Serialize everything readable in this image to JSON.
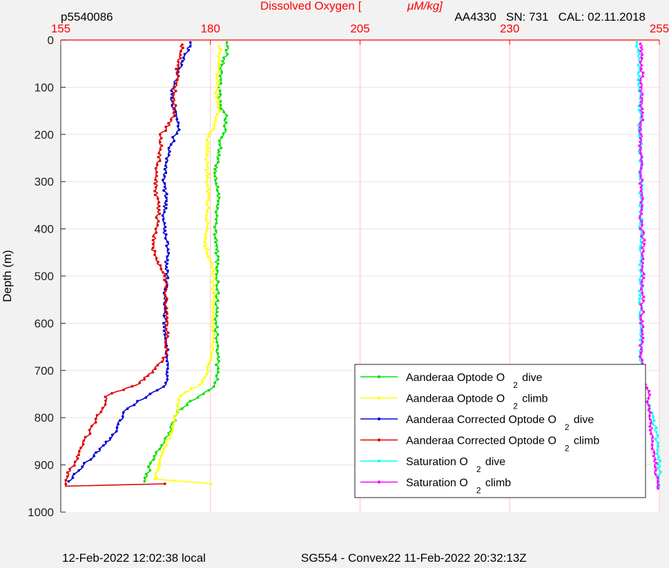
{
  "header": {
    "left_id": "p5540086",
    "right_info": "AA4330   SN: 731   CAL: 02.11.2018"
  },
  "footer": {
    "left": "12-Feb-2022 12:02:38 local",
    "center": "SG554 - Convex22 11-Feb-2022 20:32:13Z"
  },
  "colors": {
    "axis_top": "#ff0000",
    "grid_x": "#ffc0c0",
    "grid_y": "#e3e3e3",
    "plot_bg": "#ffffff",
    "figure_bg": "#f2f2f2"
  },
  "chart_data": {
    "type": "line",
    "title": "Dissolved Oxygen [ μM/kg]",
    "title_parts": [
      "Dissolved Oxygen [",
      "μM/kg]"
    ],
    "xlabel": "Dissolved Oxygen [ μM/kg]",
    "ylabel": "Depth (m)",
    "xlim": [
      155,
      255
    ],
    "ylim": [
      0,
      1000
    ],
    "y_reversed": true,
    "x_axis_location": "top",
    "x_ticks": [
      155,
      180,
      205,
      230,
      255
    ],
    "y_ticks": [
      0,
      100,
      200,
      300,
      400,
      500,
      600,
      700,
      800,
      900,
      1000
    ],
    "grid": true,
    "legend_position": "bottom-right",
    "series": [
      {
        "name": "Aanderaa Optode O 2 dive",
        "legend": [
          "Aanderaa Optode O",
          "2",
          "dive"
        ],
        "color": "#00e000",
        "points": [
          [
            183,
            5
          ],
          [
            182.6,
            30
          ],
          [
            181.8,
            60
          ],
          [
            181.5,
            100
          ],
          [
            181.5,
            130
          ],
          [
            182.5,
            160
          ],
          [
            182.6,
            190
          ],
          [
            181.8,
            210
          ],
          [
            181.4,
            240
          ],
          [
            181,
            270
          ],
          [
            180.9,
            300
          ],
          [
            181.3,
            330
          ],
          [
            181.1,
            360
          ],
          [
            180.8,
            400
          ],
          [
            181.2,
            440
          ],
          [
            181,
            470
          ],
          [
            181.2,
            500
          ],
          [
            181.1,
            540
          ],
          [
            181,
            580
          ],
          [
            181,
            620
          ],
          [
            181.2,
            660
          ],
          [
            181.2,
            700
          ],
          [
            180.9,
            730
          ],
          [
            179.5,
            742
          ],
          [
            176.8,
            765
          ],
          [
            174.6,
            785
          ],
          [
            173.8,
            810
          ],
          [
            172.8,
            840
          ],
          [
            171.3,
            870
          ],
          [
            170,
            900
          ],
          [
            169,
            935
          ]
        ]
      },
      {
        "name": "Aanderaa Optode O 2 climb",
        "legend": [
          "Aanderaa Optode O",
          "2",
          "climb"
        ],
        "color": "#ffff00",
        "points": [
          [
            180.3,
            940
          ],
          [
            170.8,
            930
          ],
          [
            171.4,
            900
          ],
          [
            172.2,
            870
          ],
          [
            173.2,
            840
          ],
          [
            174,
            810
          ],
          [
            174.6,
            780
          ],
          [
            175.1,
            750
          ],
          [
            178.3,
            730
          ],
          [
            179.6,
            700
          ],
          [
            180.2,
            670
          ],
          [
            180.5,
            620
          ],
          [
            180.5,
            560
          ],
          [
            180.5,
            500
          ],
          [
            180.1,
            470
          ],
          [
            179.2,
            440
          ],
          [
            179.5,
            400
          ],
          [
            179.5,
            360
          ],
          [
            179.6,
            320
          ],
          [
            179.5,
            280
          ],
          [
            179.4,
            240
          ],
          [
            179.6,
            200
          ],
          [
            180.8,
            180
          ],
          [
            181.3,
            150
          ],
          [
            181,
            120
          ],
          [
            181.2,
            80
          ],
          [
            181.3,
            50
          ],
          [
            181.5,
            20
          ],
          [
            181.5,
            10
          ]
        ]
      },
      {
        "name": "Aanderaa Corrected Optode O 2 dive",
        "legend": [
          "Aanderaa Corrected Optode O",
          "2",
          "dive"
        ],
        "color": "#0000d8",
        "points": [
          [
            176.8,
            5
          ],
          [
            175.8,
            30
          ],
          [
            174.8,
            60
          ],
          [
            173.8,
            100
          ],
          [
            173.5,
            130
          ],
          [
            174.3,
            160
          ],
          [
            174.6,
            190
          ],
          [
            173.8,
            210
          ],
          [
            173,
            240
          ],
          [
            172.6,
            270
          ],
          [
            172.2,
            300
          ],
          [
            172.6,
            330
          ],
          [
            172.3,
            360
          ],
          [
            172.2,
            400
          ],
          [
            173,
            440
          ],
          [
            172.6,
            470
          ],
          [
            172.7,
            500
          ],
          [
            172.5,
            540
          ],
          [
            172.4,
            580
          ],
          [
            172.4,
            620
          ],
          [
            172.7,
            660
          ],
          [
            172.9,
            700
          ],
          [
            172.6,
            730
          ],
          [
            171,
            742
          ],
          [
            168,
            765
          ],
          [
            165.8,
            785
          ],
          [
            164.8,
            810
          ],
          [
            163.6,
            840
          ],
          [
            161.5,
            870
          ],
          [
            158.8,
            900
          ],
          [
            156.3,
            935
          ]
        ]
      },
      {
        "name": "Aanderaa Corrected Optode O 2 climb",
        "legend": [
          "Aanderaa Corrected Optode O",
          "2",
          "climb"
        ],
        "color": "#e00000",
        "points": [
          [
            172.5,
            940
          ],
          [
            155.8,
            945
          ],
          [
            156.2,
            920
          ],
          [
            157.5,
            890
          ],
          [
            158.5,
            860
          ],
          [
            159.8,
            830
          ],
          [
            160.6,
            810
          ],
          [
            162,
            780
          ],
          [
            162.8,
            752
          ],
          [
            167.8,
            730
          ],
          [
            170.5,
            700
          ],
          [
            172.6,
            670
          ],
          [
            172.7,
            620
          ],
          [
            172.6,
            560
          ],
          [
            172.5,
            500
          ],
          [
            171.2,
            470
          ],
          [
            170.3,
            440
          ],
          [
            171,
            400
          ],
          [
            171.3,
            360
          ],
          [
            170.9,
            320
          ],
          [
            171,
            280
          ],
          [
            171.6,
            240
          ],
          [
            171.8,
            200
          ],
          [
            173,
            180
          ],
          [
            174.1,
            150
          ],
          [
            173.8,
            120
          ],
          [
            174.4,
            80
          ],
          [
            174.6,
            50
          ],
          [
            175.1,
            20
          ],
          [
            175.3,
            10
          ]
        ]
      },
      {
        "name": "Saturation O 2 dive",
        "legend": [
          "Saturation O",
          "2",
          "dive"
        ],
        "color": "#00ffff",
        "points": [
          [
            251.3,
            5
          ],
          [
            251.6,
            30
          ],
          [
            251.7,
            100
          ],
          [
            251.8,
            200
          ],
          [
            251.9,
            300
          ],
          [
            251.9,
            400
          ],
          [
            251.9,
            500
          ],
          [
            251.9,
            600
          ],
          [
            251.8,
            690
          ],
          [
            251.9,
            740
          ],
          [
            252.6,
            760
          ],
          [
            253.7,
            790
          ],
          [
            254.5,
            830
          ],
          [
            254.9,
            880
          ],
          [
            255,
            930
          ],
          [
            255,
            950
          ]
        ]
      },
      {
        "name": "Saturation O 2 climb",
        "legend": [
          "Saturation O",
          "2",
          "climb"
        ],
        "color": "#ff00ff",
        "points": [
          [
            254.8,
            950
          ],
          [
            254.6,
            935
          ],
          [
            254.3,
            900
          ],
          [
            254,
            870
          ],
          [
            253.7,
            830
          ],
          [
            253.4,
            800
          ],
          [
            253.2,
            770
          ],
          [
            253.1,
            740
          ],
          [
            252.6,
            730
          ],
          [
            252.1,
            720
          ],
          [
            252,
            690
          ],
          [
            252.1,
            600
          ],
          [
            252.2,
            500
          ],
          [
            252.1,
            460
          ],
          [
            252.3,
            420
          ],
          [
            252,
            400
          ],
          [
            252,
            300
          ],
          [
            251.9,
            200
          ],
          [
            252.1,
            150
          ],
          [
            252,
            100
          ],
          [
            252.1,
            50
          ],
          [
            252,
            20
          ],
          [
            252,
            5
          ]
        ]
      }
    ]
  }
}
